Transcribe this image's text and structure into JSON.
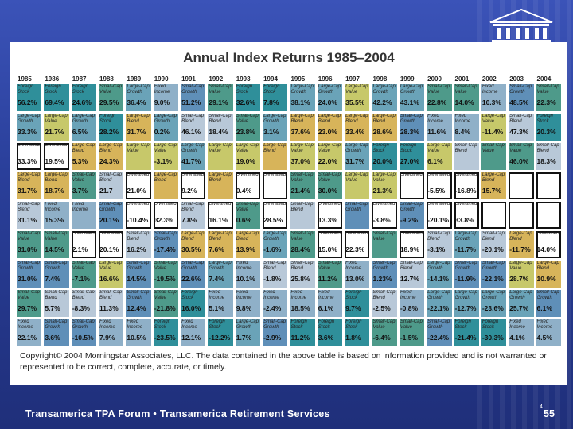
{
  "slide": {
    "title": "Annual Index Returns 1985–2004",
    "copyright": "Copyright© 2004 Morningstar Associates, LLC. The data contained in the above table is based on information provided and is not warranted or represented to be correct, complete, accurate, or timely.",
    "footer": "Transamerica TPA Forum  •  Transamerica Retirement Services",
    "page_small": "4",
    "page_number": "55"
  },
  "years": [
    "1985",
    "1986",
    "1987",
    "1988",
    "1989",
    "1990",
    "1991",
    "1992",
    "1993",
    "1994",
    "1995",
    "1996",
    "1997",
    "1998",
    "1999",
    "2000",
    "2001",
    "2002",
    "2003",
    "2004"
  ],
  "rows": [
    [
      [
        "Foreign Stock",
        "56.2%",
        "fs"
      ],
      [
        "Foreign Stock",
        "69.4%",
        "fs"
      ],
      [
        "Foreign Stock",
        "24.6%",
        "fs"
      ],
      [
        "Small-Cap Value",
        "29.5%",
        "scv"
      ],
      [
        "Large-Cap Growth",
        "36.4%",
        "lcg"
      ],
      [
        "Fixed Income",
        "9.0%",
        "fi"
      ],
      [
        "Small-Cap Growth",
        "51.2%",
        "scg"
      ],
      [
        "Small-Cap Value",
        "29.1%",
        "scv"
      ],
      [
        "Foreign Stock",
        "32.6%",
        "fs"
      ],
      [
        "Foreign Stock",
        "7.8%",
        "fs"
      ],
      [
        "Large-Cap Growth",
        "38.1%",
        "lcg"
      ],
      [
        "Large-Cap Growth",
        "24.0%",
        "lcg"
      ],
      [
        "Large-Cap Value",
        "35.5%",
        "lcv"
      ],
      [
        "Large-Cap Growth",
        "42.2%",
        "lcg"
      ],
      [
        "Large-Cap Growth",
        "43.1%",
        "lcg"
      ],
      [
        "Small-Cap Value",
        "22.8%",
        "scv"
      ],
      [
        "Small-Cap Value",
        "14.0%",
        "scv"
      ],
      [
        "Fixed Income",
        "10.3%",
        "fi"
      ],
      [
        "Small-Cap Growth",
        "48.5%",
        "scg"
      ],
      [
        "Small-Cap Value",
        "22.3%",
        "scv"
      ]
    ],
    [
      [
        "Large-Cap Growth",
        "33.3%",
        "lcg"
      ],
      [
        "Large-Cap Value",
        "21.7%",
        "lcv"
      ],
      [
        "Large-Cap Growth",
        "6.5%",
        "lcg"
      ],
      [
        "Foreign Stock",
        "28.2%",
        "fs"
      ],
      [
        "Large-Cap Blend",
        "31.7%",
        "lcb"
      ],
      [
        "Large-Cap Growth",
        "0.2%",
        "lcg"
      ],
      [
        "Small-Cap Blend",
        "46.1%",
        "scb"
      ],
      [
        "Small-Cap Blend",
        "18.4%",
        "scb"
      ],
      [
        "Small-Cap Value",
        "23.8%",
        "scv"
      ],
      [
        "Large-Cap Growth",
        "3.1%",
        "lcg"
      ],
      [
        "Large-Cap Blend",
        "37.6%",
        "lcb"
      ],
      [
        "Large-Cap Blend",
        "23.0%",
        "lcb"
      ],
      [
        "Large-Cap Blend",
        "33.4%",
        "lcb"
      ],
      [
        "Large-Cap Blend",
        "28.6%",
        "lcb"
      ],
      [
        "Small-Cap Growth",
        "28.3%",
        "scg"
      ],
      [
        "Fixed Income",
        "11.6%",
        "fi"
      ],
      [
        "Fixed Income",
        "8.4%",
        "fi"
      ],
      [
        "Large-Cap Value",
        "-11.4%",
        "lcv"
      ],
      [
        "Small-Cap Blend",
        "47.3%",
        "scb"
      ],
      [
        "Foreign Stock",
        "20.3%",
        "fs"
      ]
    ],
    [
      [
        "Diversified",
        "33.3%",
        "div"
      ],
      [
        "Diversified",
        "19.5%",
        "div"
      ],
      [
        "Large-Cap Blend",
        "5.3%",
        "lcb"
      ],
      [
        "Large-Cap Blend",
        "24.3%",
        "lcb"
      ],
      [
        "Large-Cap Value",
        "",
        "lcv"
      ],
      [
        "Large-Cap Value",
        "-3.1%",
        "lcv"
      ],
      [
        "Large-Cap Growth",
        "41.7%",
        "lcg"
      ],
      [
        "Large-Cap Value",
        "",
        "lcv"
      ],
      [
        "Large-Cap Value",
        "19.0%",
        "lcv"
      ],
      [
        "Large-Cap Blend",
        "",
        "lcb"
      ],
      [
        "Large-Cap Value",
        "37.0%",
        "lcv"
      ],
      [
        "Large-Cap Value",
        "22.0%",
        "lcv"
      ],
      [
        "Large-Cap Growth",
        "31.7%",
        "lcg"
      ],
      [
        "Foreign Stock",
        "20.0%",
        "fs"
      ],
      [
        "Foreign Stock",
        "27.0%",
        "fs"
      ],
      [
        "Large-Cap Value",
        "6.1%",
        "lcv"
      ],
      [
        "Small-Cap Blend",
        "",
        "scb"
      ],
      [
        "Small-Cap Value",
        "",
        "scv"
      ],
      [
        "Small-Cap Value",
        "46.0%",
        "scv"
      ],
      [
        "Small-Cap Blend",
        "18.3%",
        "scb"
      ]
    ],
    [
      [
        "Large-Cap Blend",
        "31.7%",
        "lcb"
      ],
      [
        "Large-Cap Blend",
        "18.7%",
        "lcb"
      ],
      [
        "Small-Cap Value",
        "3.7%",
        "scv"
      ],
      [
        "Small-Cap Blend",
        "21.7",
        "scb"
      ],
      [
        "Diversified",
        "21.0%",
        "div"
      ],
      [
        "Large-Cap Blend",
        "",
        "lcb"
      ],
      [
        "Diversified",
        "9.2%",
        "div"
      ],
      [
        "Large-Cap Blend",
        "",
        "lcb"
      ],
      [
        "Diversified",
        "0.4%",
        "div"
      ],
      [
        "Diversified",
        "",
        "div"
      ],
      [
        "Small-Cap Value",
        "21.4%",
        "scv"
      ],
      [
        "Small-Cap Value",
        "30.0%",
        "scv"
      ],
      [
        "Large-Cap Value",
        "",
        "lcv"
      ],
      [
        "Large-Cap Value",
        "21.3%",
        "lcv"
      ],
      [
        "Diversified",
        "",
        "div"
      ],
      [
        "Diversified",
        "-5.5%",
        "div"
      ],
      [
        "Diversified",
        "-16.8%",
        "div"
      ],
      [
        "Large-Cap Blend",
        "15.7%",
        "lcb"
      ],
      [
        "",
        "",
        ""
      ],
      [
        "",
        "",
        ""
      ]
    ],
    [
      [
        "Small-Cap Blend",
        "31.1%",
        "scb"
      ],
      [
        "Fixed Income",
        "15.3%",
        "fi"
      ],
      [
        "Fixed Income",
        "",
        "fi"
      ],
      [
        "Small-Cap Growth",
        "20.1%",
        "scg"
      ],
      [
        "Diversified",
        "-10.4%",
        "div"
      ],
      [
        "Diversified",
        "32.3%",
        "div"
      ],
      [
        "Small-Cap Blend",
        "7.8%",
        "scb"
      ],
      [
        "Diversified",
        "16.1%",
        "div"
      ],
      [
        "Small-Cap Value",
        "0.6%",
        "scv"
      ],
      [
        "Diversified",
        "28.5%",
        "div"
      ],
      [
        "Small-Cap Blend",
        "",
        "scb"
      ],
      [
        "Diversified",
        "13.3%",
        "div"
      ],
      [
        "Small-Cap Growth",
        "",
        "scg"
      ],
      [
        "Diversified",
        "-3.8%",
        "div"
      ],
      [
        "Small-Cap Growth",
        "-9.2%",
        "scg"
      ],
      [
        "Diversified",
        "-20.1%",
        "div"
      ],
      [
        "Diversified",
        "33.8%",
        "div"
      ],
      [
        "",
        "",
        ""
      ],
      [
        "",
        "",
        ""
      ],
      [
        "",
        "",
        ""
      ]
    ],
    [
      [
        "Small-Cap Value",
        "31.0%",
        "scv"
      ],
      [
        "Small-Cap Value",
        "14.5%",
        "scv"
      ],
      [
        "Diversified",
        "2.1%",
        "div"
      ],
      [
        "Diversified",
        "20.1%",
        "div"
      ],
      [
        "Small-Cap Blend",
        "16.2%",
        "scb"
      ],
      [
        "Small-Cap Growth",
        "-17.4%",
        "scg"
      ],
      [
        "Large-Cap Blend",
        "30.5%",
        "lcb"
      ],
      [
        "Large-Cap Blend",
        "7.6%",
        "lcb"
      ],
      [
        "Large-Cap Blend",
        "13.9%",
        "lcb"
      ],
      [
        "Large-Cap Growth",
        "-1.6%",
        "lcg"
      ],
      [
        "Small-Cap Value",
        "28.4%",
        "scv"
      ],
      [
        "Diversified",
        "15.0%",
        "div"
      ],
      [
        "Diversified",
        "22.3%",
        "div"
      ],
      [
        "Small-Cap Value",
        "",
        "scv"
      ],
      [
        "Diversified",
        "18.9%",
        "div"
      ],
      [
        "Small-Cap Blend",
        "-3.1%",
        "scb"
      ],
      [
        "Large-Cap Growth",
        "-11.7%",
        "lcg"
      ],
      [
        "Small-Cap Blend",
        "-20.1%",
        "scb"
      ],
      [
        "Large-Cap Blend",
        "-11.7%",
        "lcb"
      ],
      [
        "Diversified",
        "14.0%",
        "div"
      ]
    ],
    [
      [
        "Small-Cap Growth",
        "31.0%",
        "scg"
      ],
      [
        "Small-Cap Growth",
        "7.4%",
        "scg"
      ],
      [
        "Small-Cap Value",
        "-7.1%",
        "scv"
      ],
      [
        "Large-Cap Value",
        "16.6%",
        "lcv"
      ],
      [
        "Small-Cap Growth",
        "14.5%",
        "scg"
      ],
      [
        "Small-Cap Value",
        "-19.5%",
        "scv"
      ],
      [
        "Small-Cap Growth",
        "22.6%",
        "scg"
      ],
      [
        "Large-Cap Growth",
        "7.4%",
        "lcg"
      ],
      [
        "Fixed Income",
        "10.1%",
        "fi"
      ],
      [
        "Small-Cap Blend",
        "-1.8%",
        "scb"
      ],
      [
        "Small-Cap Blend",
        "25.8%",
        "scb"
      ],
      [
        "Small-Cap Value",
        "11.2%",
        "scv"
      ],
      [
        "Fixed Income",
        "13.0%",
        "fi"
      ],
      [
        "Small-Cap Growth",
        "1.23%",
        "scg"
      ],
      [
        "Small-Cap Blend",
        "12.7%",
        "scb"
      ],
      [
        "Large-Cap Growth",
        "-14.1%",
        "lcg"
      ],
      [
        "Small-Cap Growth",
        "-11.9%",
        "scg"
      ],
      [
        "Small-Cap Growth",
        "-22.1%",
        "scg"
      ],
      [
        "Large-Cap Value",
        "28.7%",
        "lcv"
      ],
      [
        "Large-Cap Blend",
        "10.9%",
        "lcb"
      ]
    ],
    [
      [
        "Small-Cap Value",
        "29.7%",
        "scv"
      ],
      [
        "Small-Cap Blend",
        "5.7%",
        "scb"
      ],
      [
        "Small-Cap Blend",
        "-8.3%",
        "scb"
      ],
      [
        "Small-Cap Blend",
        "11.3%",
        "scb"
      ],
      [
        "Small-Cap Growth",
        "12.4%",
        "scg"
      ],
      [
        "Small-Cap Value",
        "-21.8%",
        "scv"
      ],
      [
        "Foreign Stock",
        "16.0%",
        "fs"
      ],
      [
        "Fixed Income",
        "5.1%",
        "fi"
      ],
      [
        "Fixed Income",
        "9.8%",
        "fi"
      ],
      [
        "Fixed Income",
        "-2.4%",
        "fi"
      ],
      [
        "Fixed Income",
        "18.5%",
        "fi"
      ],
      [
        "Fixed Income",
        "6.1%",
        "fi"
      ],
      [
        "Foreign Stock",
        "9.7%",
        "fs"
      ],
      [
        "Small-Cap Blend",
        "-2.5%",
        "scb"
      ],
      [
        "Fixed Income",
        "-0.8%",
        "fi"
      ],
      [
        "Large-Cap Growth",
        "-22.1%",
        "lcg"
      ],
      [
        "Large-Cap Growth",
        "-12.7%",
        "lcg"
      ],
      [
        "Large-Cap Growth",
        "-23.6%",
        "lcg"
      ],
      [
        "Large-Cap Growth",
        "25.7%",
        "lcg"
      ],
      [
        "Small-Cap Growth",
        "6.1%",
        "scg"
      ]
    ],
    [
      [
        "Fixed Income",
        "22.1%",
        "fi"
      ],
      [
        "Small-Cap Growth",
        "3.6%",
        "scg"
      ],
      [
        "Small-Cap Growth",
        "-10.5%",
        "scg"
      ],
      [
        "Fixed Income",
        "7.9%",
        "fi"
      ],
      [
        "Fixed Income",
        "10.5%",
        "fi"
      ],
      [
        "Foreign Stock",
        "-23.5%",
        "fs"
      ],
      [
        "Fixed Income",
        "12.1%",
        "fi"
      ],
      [
        "Foreign Stock",
        "-12.2%",
        "fs"
      ],
      [
        "Large-Cap Growth",
        "1.7%",
        "lcg"
      ],
      [
        "Small-Cap Growth",
        "-2.9%",
        "scg"
      ],
      [
        "Foreign Stock",
        "11.2%",
        "fs"
      ],
      [
        "Foreign Stock",
        "3.6%",
        "fs"
      ],
      [
        "Foreign Stock",
        "1.8%",
        "fs"
      ],
      [
        "Small-Cap Value",
        "-6.4%",
        "scv"
      ],
      [
        "Small-Cap Value",
        "-1.5%",
        "scv"
      ],
      [
        "Small-Cap Growth",
        "-22.4%",
        "scg"
      ],
      [
        "Foreign Stock",
        "-21.4%",
        "fs"
      ],
      [
        "Foreign Stock",
        "-30.3%",
        "fs"
      ],
      [
        "Fixed Income",
        "4.1%",
        "fi"
      ],
      [
        "Fixed Income",
        "4.5%",
        "fi"
      ]
    ]
  ]
}
